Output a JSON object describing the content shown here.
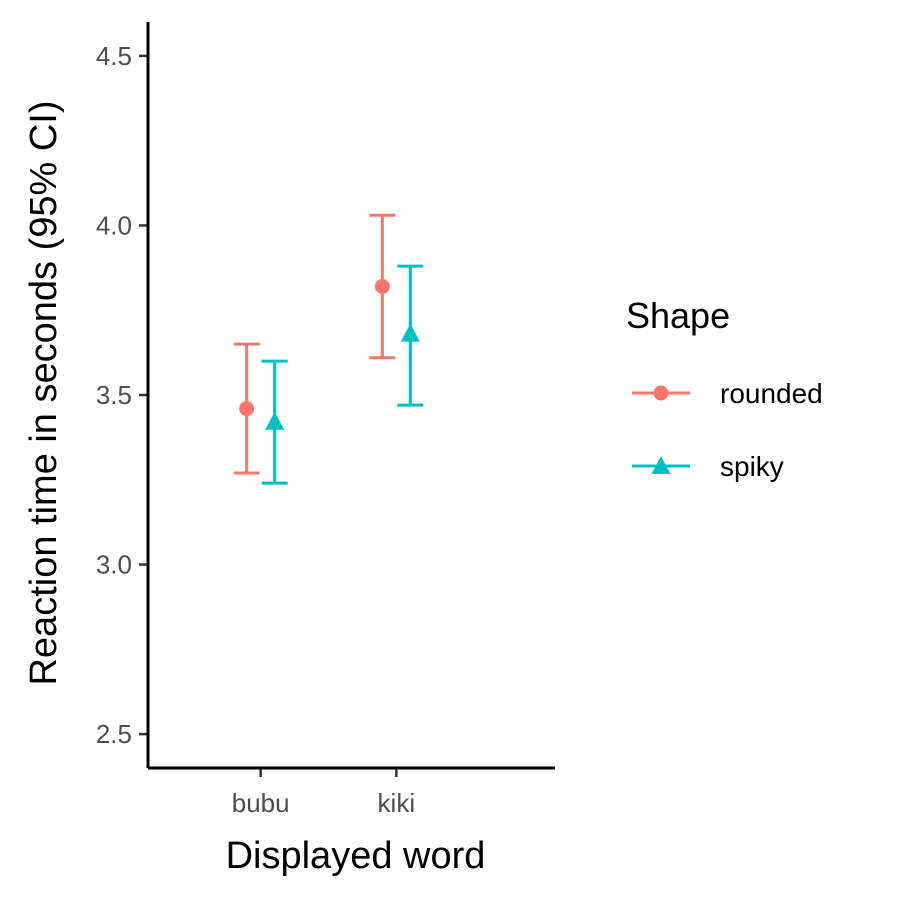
{
  "chart_data": {
    "type": "scatter",
    "xlabel": "Displayed word",
    "ylabel": "Reaction time in seconds (95% CI)",
    "categories": [
      "bubu",
      "kiki"
    ],
    "ylim": [
      2.4,
      4.6
    ],
    "yticks": [
      "2.5",
      "3.0",
      "3.5",
      "4.0",
      "4.5"
    ],
    "grid": false,
    "legend": {
      "title": "Shape",
      "position": "right"
    },
    "series": [
      {
        "name": "rounded",
        "color": "#F8766D",
        "marker": "circle",
        "values": [
          3.46,
          3.82
        ],
        "ci_low": [
          3.27,
          3.61
        ],
        "ci_high": [
          3.65,
          4.03
        ]
      },
      {
        "name": "spiky",
        "color": "#00BFC4",
        "marker": "triangle",
        "values": [
          3.42,
          3.68
        ],
        "ci_low": [
          3.24,
          3.47
        ],
        "ci_high": [
          3.6,
          3.88
        ]
      }
    ]
  }
}
